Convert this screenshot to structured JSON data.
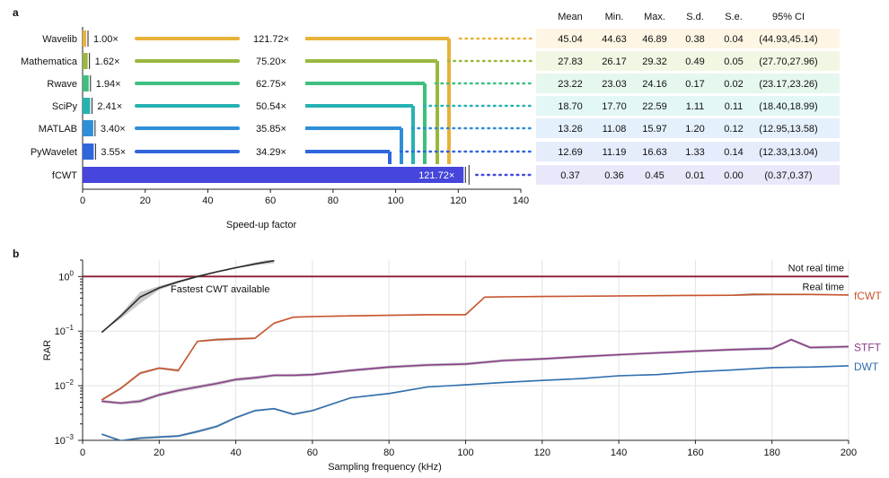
{
  "chart_data": [
    {
      "panel_label": "a",
      "type": "bar",
      "xlabel": "Speed-up factor",
      "xlim": [
        0,
        140
      ],
      "xticks": [
        0,
        20,
        40,
        60,
        80,
        100,
        120,
        140
      ],
      "categories": [
        "Wavelib",
        "Mathematica",
        "Rwave",
        "SciPy",
        "MATLAB",
        "PyWavelet",
        "fCWT"
      ],
      "values": [
        1.0,
        1.62,
        1.94,
        2.41,
        3.4,
        3.55,
        121.72
      ],
      "value_labels": [
        "1.00×",
        "1.62×",
        "1.94×",
        "2.41×",
        "3.40×",
        "3.55×",
        "121.72×"
      ],
      "ratio_labels": [
        "121.72×",
        "75.20×",
        "62.75×",
        "50.54×",
        "35.85×",
        "34.29×"
      ],
      "bar_colors": [
        "#e8b23a",
        "#9ab83e",
        "#3fbf7f",
        "#27b2b2",
        "#2e8ed8",
        "#3066dc",
        "#4646dc"
      ],
      "row_bg_colors": [
        "#fdf6e4",
        "#f1f7e3",
        "#e6f7ee",
        "#e4f7f7",
        "#e4f0fb",
        "#e5ecfb",
        "#e8e8fa"
      ],
      "table_headers": [
        "Mean",
        "Min.",
        "Max.",
        "S.d.",
        "S.e.",
        "95% CI"
      ],
      "table_rows": [
        [
          "45.04",
          "44.63",
          "46.89",
          "0.38",
          "0.04",
          "(44.93,45.14)"
        ],
        [
          "27.83",
          "26.17",
          "29.32",
          "0.49",
          "0.05",
          "(27.70,27.96)"
        ],
        [
          "23.22",
          "23.03",
          "24.16",
          "0.17",
          "0.02",
          "(23.17,23.26)"
        ],
        [
          "18.70",
          "17.70",
          "22.59",
          "1.11",
          "0.11",
          "(18.40,18.99)"
        ],
        [
          "13.26",
          "11.08",
          "15.97",
          "1.20",
          "0.12",
          "(12.95,13.58)"
        ],
        [
          "12.69",
          "11.19",
          "16.63",
          "1.33",
          "0.14",
          "(12.33,13.04)"
        ],
        [
          "0.37",
          "0.36",
          "0.45",
          "0.01",
          "0.00",
          "(0.37,0.37)"
        ]
      ]
    },
    {
      "panel_label": "b",
      "type": "line",
      "xlabel": "Sampling frequency (kHz)",
      "ylabel": "RAR",
      "xlim": [
        0,
        200
      ],
      "xticks": [
        0,
        20,
        40,
        60,
        80,
        100,
        120,
        140,
        160,
        180,
        200
      ],
      "ylog": true,
      "ylim": [
        0.001,
        2
      ],
      "yticks": [
        {
          "value": 1,
          "base": "10",
          "exp": "0"
        },
        {
          "value": 0.1,
          "base": "10",
          "exp": "−1"
        },
        {
          "value": 0.01,
          "base": "10",
          "exp": "−2"
        },
        {
          "value": 0.001,
          "base": "10",
          "exp": "−3"
        }
      ],
      "reference_line": {
        "value": 1,
        "color": "#8b1a2e",
        "label_above": "Not real time",
        "label_below": "Real time"
      },
      "annotation": "Fastest CWT available",
      "series": [
        {
          "name": "fastest",
          "label": "",
          "color": "#2b2b2b",
          "x": [
            5,
            10,
            15,
            20,
            25,
            30,
            35,
            40,
            45,
            50
          ],
          "y": [
            0.095,
            0.19,
            0.42,
            0.62,
            0.8,
            1.0,
            1.22,
            1.45,
            1.7,
            1.95
          ],
          "band": [
            0.0,
            0.02,
            0.1,
            0.05,
            0.04,
            0.04,
            0.04,
            0.05,
            0.1,
            0.2
          ]
        },
        {
          "name": "fCWT",
          "label": "fCWT",
          "color": "#c8532b",
          "x": [
            5,
            10,
            15,
            20,
            25,
            30,
            35,
            40,
            45,
            50,
            55,
            60,
            70,
            80,
            90,
            100,
            105,
            110,
            120,
            130,
            140,
            150,
            160,
            170,
            175,
            180,
            190,
            200
          ],
          "y": [
            0.0055,
            0.009,
            0.017,
            0.021,
            0.019,
            0.065,
            0.07,
            0.072,
            0.074,
            0.14,
            0.18,
            0.185,
            0.19,
            0.195,
            0.2,
            0.2,
            0.42,
            0.425,
            0.43,
            0.435,
            0.44,
            0.445,
            0.45,
            0.455,
            0.47,
            0.47,
            0.47,
            0.46
          ],
          "band": [
            0.0003,
            0.0005,
            0.001,
            0.001,
            0.001,
            0.002,
            0.004,
            0.004,
            0.003,
            0.005,
            0.005,
            0.005,
            0.005,
            0.005,
            0.005,
            0.005,
            0.01,
            0.01,
            0.01,
            0.01,
            0.01,
            0.01,
            0.01,
            0.015,
            0.03,
            0.02,
            0.015,
            0.01
          ]
        },
        {
          "name": "STFT",
          "label": "STFT",
          "color": "#8b3d8b",
          "x": [
            5,
            10,
            15,
            20,
            25,
            30,
            35,
            40,
            45,
            50,
            55,
            60,
            70,
            80,
            90,
            100,
            110,
            120,
            130,
            140,
            150,
            160,
            170,
            180,
            185,
            190,
            200
          ],
          "y": [
            0.0052,
            0.0048,
            0.0052,
            0.0068,
            0.0082,
            0.0095,
            0.011,
            0.013,
            0.014,
            0.0155,
            0.0155,
            0.016,
            0.019,
            0.022,
            0.024,
            0.025,
            0.029,
            0.031,
            0.034,
            0.037,
            0.04,
            0.043,
            0.046,
            0.048,
            0.07,
            0.05,
            0.052
          ],
          "band": [
            0.0003,
            0.0003,
            0.0004,
            0.0005,
            0.0006,
            0.0007,
            0.0008,
            0.0009,
            0.001,
            0.001,
            0.001,
            0.001,
            0.0012,
            0.0014,
            0.0015,
            0.0015,
            0.0017,
            0.0018,
            0.002,
            0.002,
            0.0022,
            0.0024,
            0.0026,
            0.003,
            0.004,
            0.003,
            0.003
          ]
        },
        {
          "name": "DWT",
          "label": "DWT",
          "color": "#2f6fae",
          "x": [
            5,
            10,
            15,
            20,
            25,
            30,
            35,
            40,
            45,
            50,
            55,
            60,
            70,
            80,
            90,
            100,
            110,
            120,
            130,
            140,
            150,
            160,
            170,
            180,
            190,
            200
          ],
          "y": [
            0.0013,
            0.00098,
            0.0011,
            0.00115,
            0.0012,
            0.00145,
            0.0018,
            0.0026,
            0.0035,
            0.0038,
            0.003,
            0.0035,
            0.006,
            0.0072,
            0.0095,
            0.0104,
            0.0115,
            0.0125,
            0.0135,
            0.0152,
            0.016,
            0.018,
            0.0195,
            0.0215,
            0.022,
            0.0232
          ],
          "band": [
            5e-05,
            5e-05,
            6e-05,
            6e-05,
            6e-05,
            8e-05,
            0.0001,
            0.00012,
            0.00015,
            0.00015,
            0.00015,
            0.00015,
            0.0002,
            0.00025,
            0.0003,
            0.0003,
            0.0003,
            0.0003,
            0.0003,
            0.0004,
            0.0004,
            0.0004,
            0.0004,
            0.0004,
            0.0004,
            0.0004
          ]
        }
      ]
    }
  ]
}
